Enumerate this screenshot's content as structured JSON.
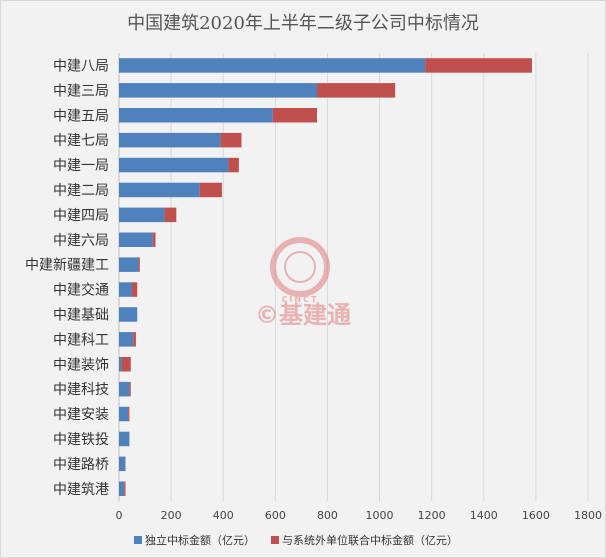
{
  "chart_data": {
    "type": "bar",
    "orientation": "horizontal",
    "stacked": true,
    "title": "中国建筑2020年上半年二级子公司中标情况",
    "categories": [
      "中建八局",
      "中建三局",
      "中建五局",
      "中建七局",
      "中建一局",
      "中建二局",
      "中建四局",
      "中建六局",
      "中建新疆建工",
      "中建交通",
      "中建基础",
      "中建科工",
      "中建装饰",
      "中建科技",
      "中建安装",
      "中建铁投",
      "中建路桥",
      "中建筑港"
    ],
    "series": [
      {
        "name": "独立中标金额（亿元）",
        "color": "#4f81bd",
        "values": [
          1175,
          760,
          590,
          390,
          420,
          310,
          175,
          130,
          75,
          50,
          70,
          55,
          10,
          40,
          35,
          40,
          25,
          20
        ]
      },
      {
        "name": "与系统外单位联合中标金额（亿元）",
        "color": "#c0504d",
        "values": [
          410,
          300,
          170,
          80,
          40,
          85,
          45,
          10,
          5,
          20,
          0,
          10,
          35,
          5,
          5,
          0,
          0,
          5
        ]
      }
    ],
    "xlim": [
      0,
      1800
    ],
    "xticks": [
      0,
      200,
      400,
      600,
      800,
      1000,
      1200,
      1400,
      1600,
      1800
    ],
    "grid": true,
    "legend_position": "bottom"
  },
  "watermark": {
    "logo_text": "CINCT",
    "text": "©基建通",
    "color": "#e06666"
  }
}
